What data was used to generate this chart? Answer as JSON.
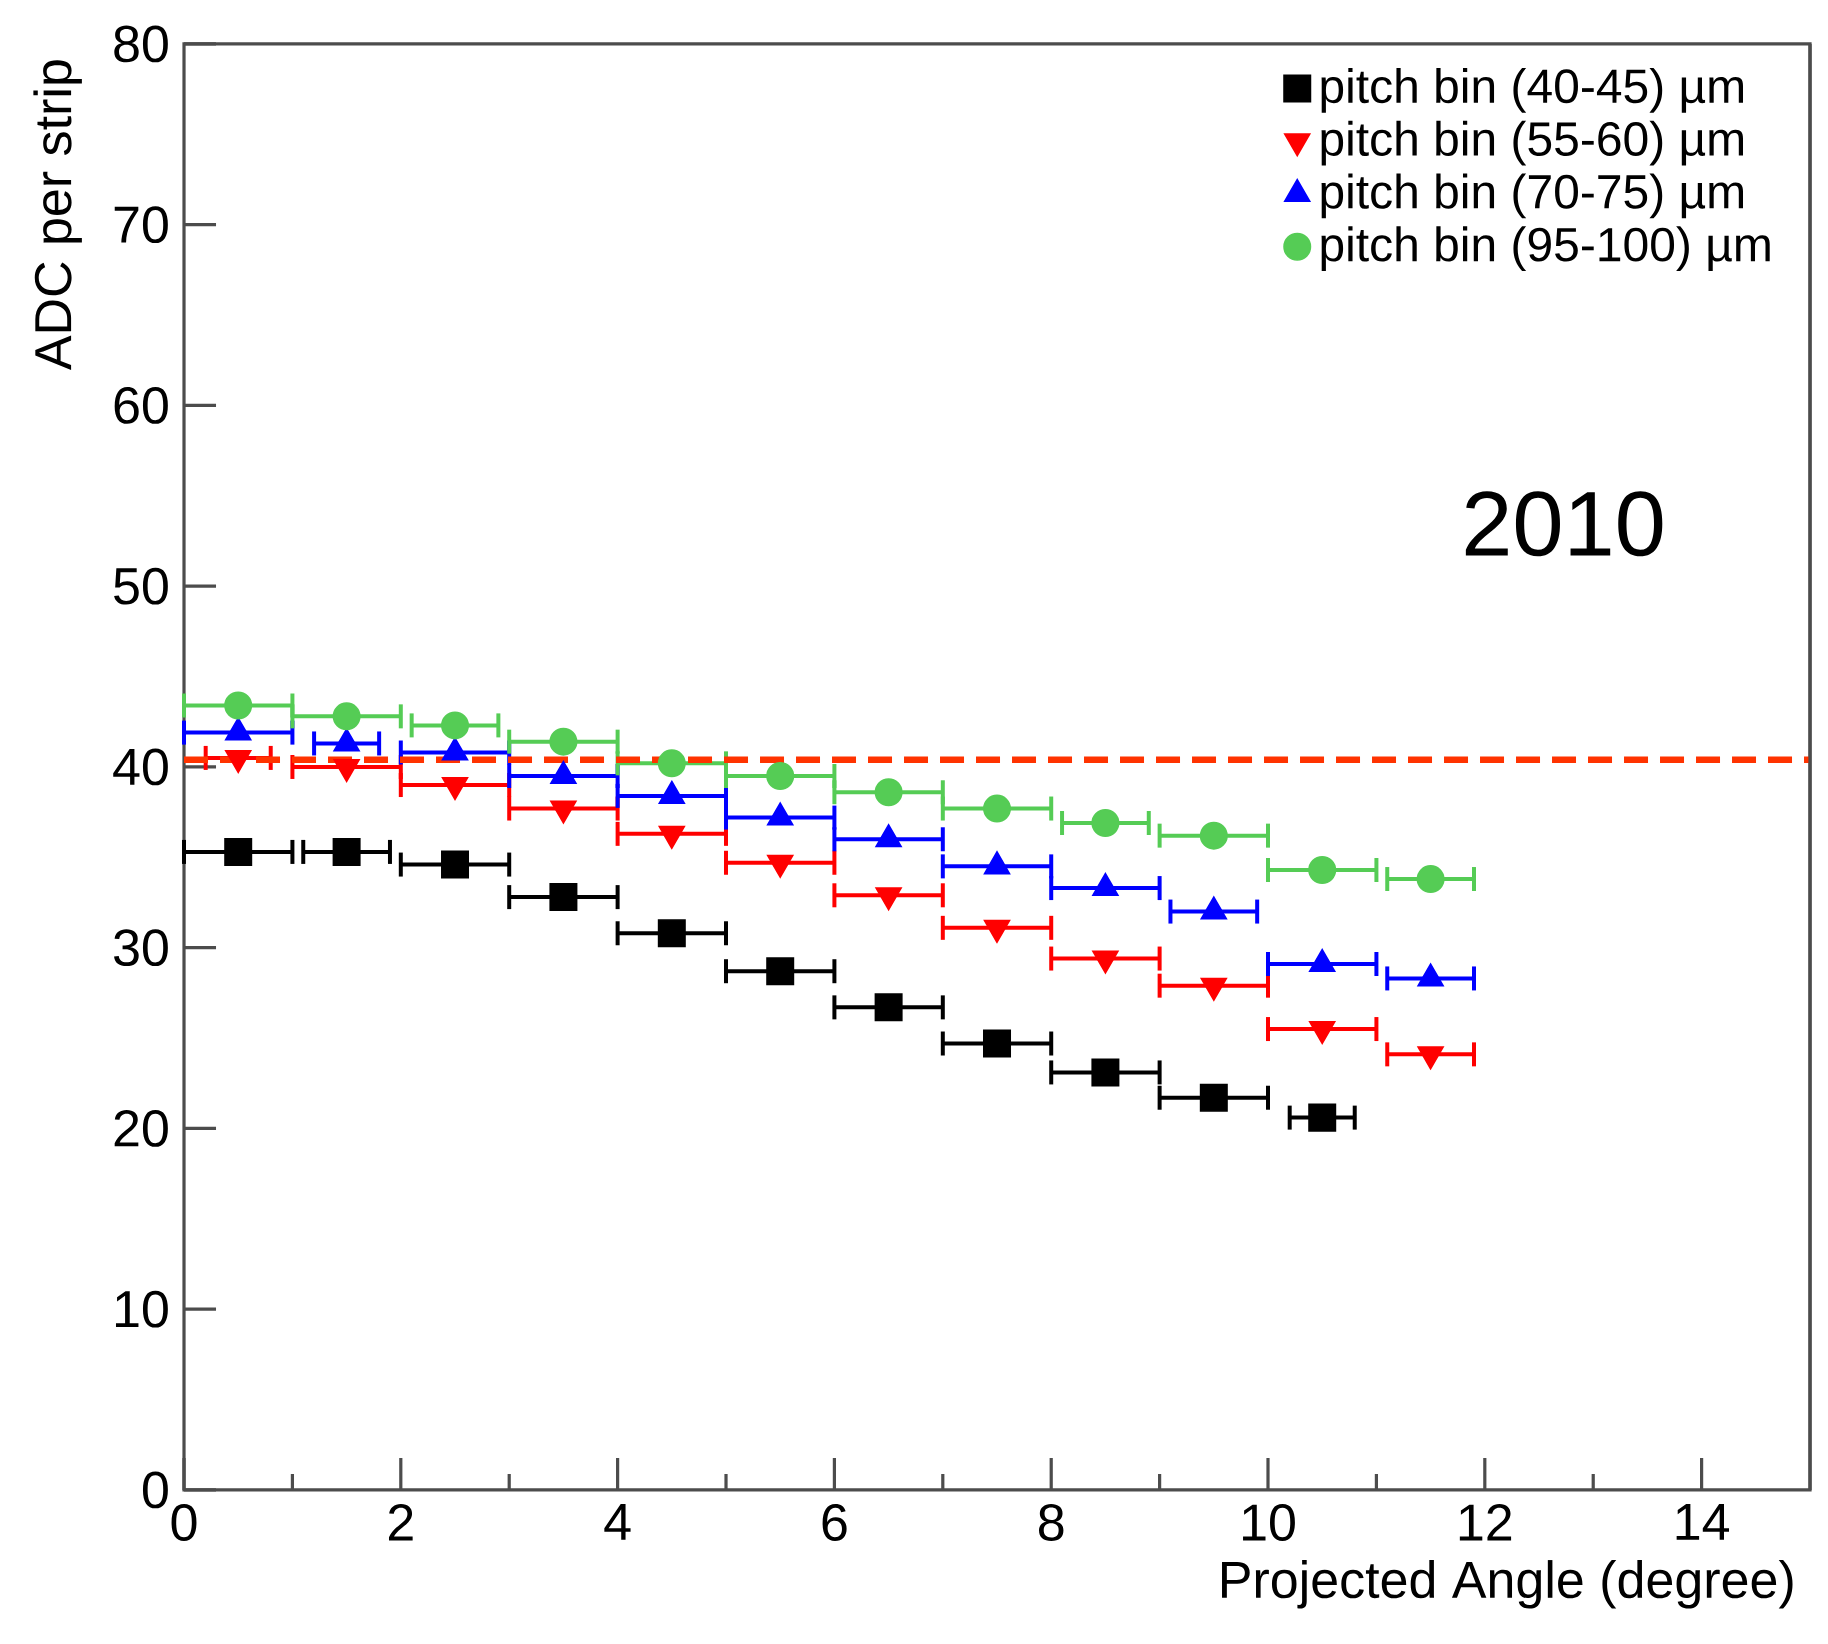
{
  "chart_data": {
    "type": "scatter",
    "xlabel": "Projected Angle (degree)",
    "ylabel": "ADC per strip",
    "xlim": [
      0,
      15
    ],
    "ylim": [
      0,
      80
    ],
    "xticks": [
      0,
      2,
      4,
      6,
      8,
      10,
      12,
      14
    ],
    "yticks": [
      0,
      10,
      20,
      30,
      40,
      50,
      60,
      70,
      80
    ],
    "legend": "top right",
    "grid": false,
    "annotations": [
      "2010"
    ],
    "ref_lines": [
      {
        "axis": "y",
        "value": 40.4,
        "color": "#ff3300",
        "line_style": "dashed"
      }
    ],
    "series": [
      {
        "name": "pitch bin (40-45) µm",
        "color": "#000000",
        "marker": "square",
        "x": [
          0.5,
          1.5,
          2.5,
          3.5,
          4.5,
          5.5,
          6.5,
          7.5,
          8.5,
          9.5,
          10.5
        ],
        "values": [
          35.3,
          35.3,
          34.6,
          32.8,
          30.8,
          28.7,
          26.7,
          24.7,
          23.1,
          21.7,
          20.6
        ],
        "xerrors": [
          0.5,
          0.4,
          0.5,
          0.5,
          0.5,
          0.5,
          0.5,
          0.5,
          0.5,
          0.5,
          0.3
        ]
      },
      {
        "name": "pitch bin (55-60) µm",
        "color": "#ff0000",
        "marker": "triangle_down",
        "x": [
          0.5,
          1.5,
          2.5,
          3.5,
          4.5,
          5.5,
          6.5,
          7.5,
          8.5,
          9.5,
          10.5,
          11.5
        ],
        "values": [
          40.5,
          40.0,
          39.0,
          37.7,
          36.3,
          34.7,
          32.9,
          31.1,
          29.4,
          27.9,
          25.5,
          24.1
        ],
        "xerrors": [
          0.3,
          0.5,
          0.5,
          0.5,
          0.5,
          0.5,
          0.5,
          0.5,
          0.5,
          0.5,
          0.5,
          0.4
        ]
      },
      {
        "name": "pitch bin (70-75) µm",
        "color": "#0000ff",
        "marker": "triangle",
        "x": [
          0.5,
          1.5,
          2.5,
          3.5,
          4.5,
          5.5,
          6.5,
          7.5,
          8.5,
          9.5,
          10.5,
          11.5
        ],
        "values": [
          41.9,
          41.3,
          40.8,
          39.5,
          38.4,
          37.2,
          36.0,
          34.5,
          33.3,
          32.0,
          29.1,
          28.3
        ],
        "xerrors": [
          0.5,
          0.3,
          0.5,
          0.5,
          0.5,
          0.5,
          0.5,
          0.5,
          0.5,
          0.4,
          0.5,
          0.4
        ]
      },
      {
        "name": "pitch bin (95-100) µm",
        "color": "#55cc55",
        "marker": "circle",
        "x": [
          0.5,
          1.5,
          2.5,
          3.5,
          4.5,
          5.5,
          6.5,
          7.5,
          8.5,
          9.5,
          10.5,
          11.5
        ],
        "values": [
          43.4,
          42.8,
          42.3,
          41.4,
          40.2,
          39.5,
          38.6,
          37.7,
          36.9,
          36.2,
          34.3,
          33.8
        ],
        "xerrors": [
          0.5,
          0.5,
          0.4,
          0.5,
          0.5,
          0.5,
          0.5,
          0.5,
          0.4,
          0.5,
          0.5,
          0.4
        ]
      }
    ]
  }
}
